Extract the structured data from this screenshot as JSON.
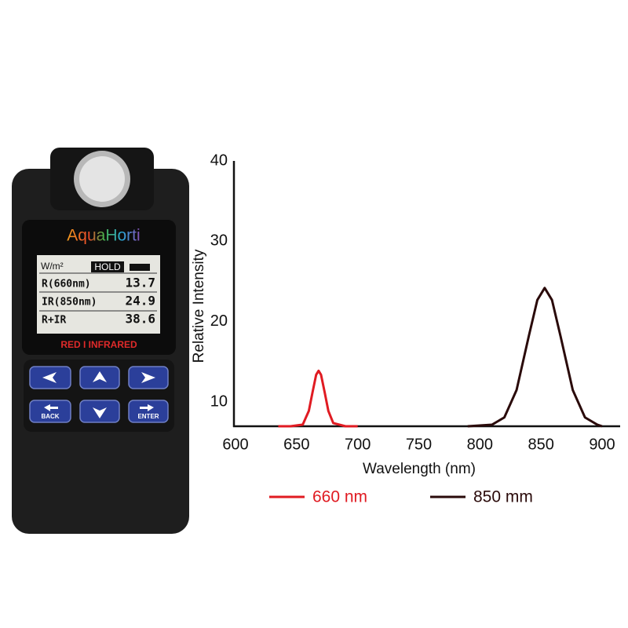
{
  "device": {
    "brand": "AquaHorti",
    "unit": "W/m²",
    "hold": "HOLD",
    "rows": [
      [
        "R(660nm)",
        "13.7"
      ],
      [
        "IR(850nm)",
        "24.9"
      ],
      [
        "R+IR",
        "38.6"
      ]
    ],
    "mode": "RED I INFRARED",
    "back": "BACK",
    "enter": "ENTER"
  },
  "chart_data": {
    "type": "line",
    "x_label": "Wavelength (nm)",
    "y_label": "Relative Intensity",
    "xlim": [
      600,
      900
    ],
    "xticks": [
      600,
      650,
      700,
      750,
      800,
      850,
      900
    ],
    "ylim": [
      7,
      40
    ],
    "yticks": [
      10,
      20,
      30,
      40
    ],
    "grid": false,
    "series": [
      {
        "name": "660 nm",
        "color": "#e01b22",
        "x": [
          635,
          645,
          655,
          660,
          663,
          666,
          668,
          670,
          673,
          676,
          680,
          690,
          700
        ],
        "values": [
          7,
          7,
          7.2,
          8.9,
          11.2,
          13.4,
          13.9,
          13.4,
          11.2,
          8.9,
          7.4,
          7,
          7
        ]
      },
      {
        "name": "850 mm",
        "color": "#2a0a0a",
        "x": [
          790,
          810,
          820,
          830,
          840,
          847,
          853,
          859,
          866,
          876,
          886,
          896,
          900
        ],
        "values": [
          7,
          7.2,
          8.1,
          11.5,
          18.2,
          22.7,
          24.2,
          22.7,
          18.2,
          11.5,
          8.1,
          7.2,
          7
        ]
      }
    ]
  }
}
